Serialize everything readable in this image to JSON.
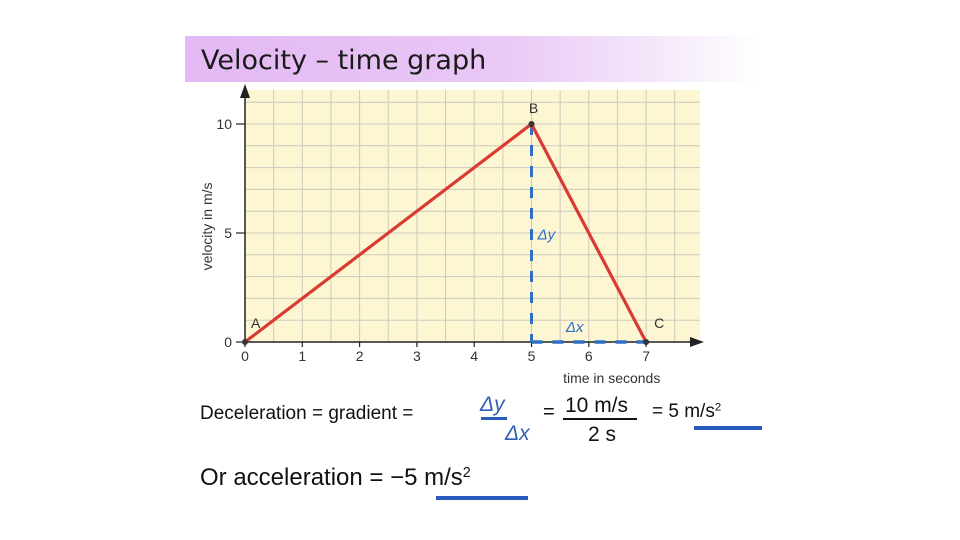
{
  "title": "Velocity – time  graph",
  "chart_data": {
    "type": "line",
    "xlabel": "time in seconds",
    "ylabel": "velocity in m/s",
    "xlim": [
      0,
      7
    ],
    "ylim": [
      0,
      10
    ],
    "x_ticks": [
      0,
      1,
      2,
      3,
      4,
      5,
      6,
      7
    ],
    "y_ticks": [
      0,
      5,
      10
    ],
    "grid": true,
    "background_color": "#fcf6d2",
    "series": [
      {
        "color": "#d93a33",
        "points": [
          {
            "label": "A",
            "x": 0,
            "y": 0
          },
          {
            "label": "B",
            "x": 5,
            "y": 10
          },
          {
            "label": "C",
            "x": 7,
            "y": 0
          }
        ]
      }
    ],
    "annotations": {
      "delta_y": {
        "text": "Δy",
        "x": 5,
        "from": 0,
        "to": 10,
        "color": "#2f6fc6"
      },
      "delta_x": {
        "text": "Δx",
        "y": 0,
        "from": 5,
        "to": 7,
        "color": "#2f6fc6"
      }
    }
  },
  "equation": {
    "lhs": "Deceleration = gradient  =",
    "frac1_num": "Δy",
    "frac1_den": "Δx",
    "eq2": "=",
    "frac2_num": "10 m/s",
    "frac2_den": "2 s",
    "result": "= 5 m/s",
    "result_exp": "2"
  },
  "alternative": {
    "text": "Or acceleration = −5 m/s",
    "exp": "2"
  }
}
